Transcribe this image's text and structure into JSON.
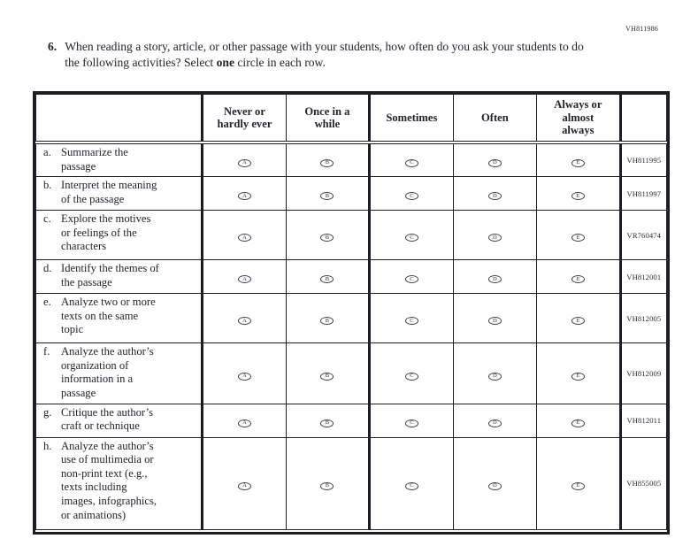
{
  "page": {
    "form_code": "VH811986"
  },
  "question": {
    "number": "6.",
    "text_before_bold": "When reading a story, article, or other passage with your students, how often do you ask your students to do the following activities? Select ",
    "bold_word": "one",
    "text_after_bold": " circle in each row."
  },
  "table": {
    "columns": [
      "Never or\nhardly ever",
      "Once in a\nwhile",
      "Sometimes",
      "Often",
      "Always or\nalmost\nalways"
    ],
    "options": [
      "A",
      "B",
      "C",
      "D",
      "E"
    ],
    "rows": [
      {
        "letter": "a.",
        "label": "Summarize the\npassage",
        "code": "VH811995"
      },
      {
        "letter": "b.",
        "label": "Interpret the meaning\nof the passage",
        "code": "VH811997"
      },
      {
        "letter": "c.",
        "label": "Explore the motives\nor feelings of the\ncharacters",
        "code": "VR760474"
      },
      {
        "letter": "d.",
        "label": "Identify the themes of\nthe passage",
        "code": "VH812001"
      },
      {
        "letter": "e.",
        "label": "Analyze two or more\ntexts on the same\ntopic",
        "code": "VH812005"
      },
      {
        "letter": "f.",
        "label": "Analyze the author’s\norganization of\ninformation in a\npassage",
        "code": "VH812009"
      },
      {
        "letter": "g.",
        "label": "Critique the author’s\ncraft or technique",
        "code": "VH812011"
      },
      {
        "letter": "h.",
        "label": "Analyze the author’s\nuse of multimedia or\nnon-print text (e.g.,\ntexts including\nimages, infographics,\nor animations)",
        "code": "VH855005"
      }
    ]
  },
  "colors": {
    "ink": "#1d1d26"
  }
}
